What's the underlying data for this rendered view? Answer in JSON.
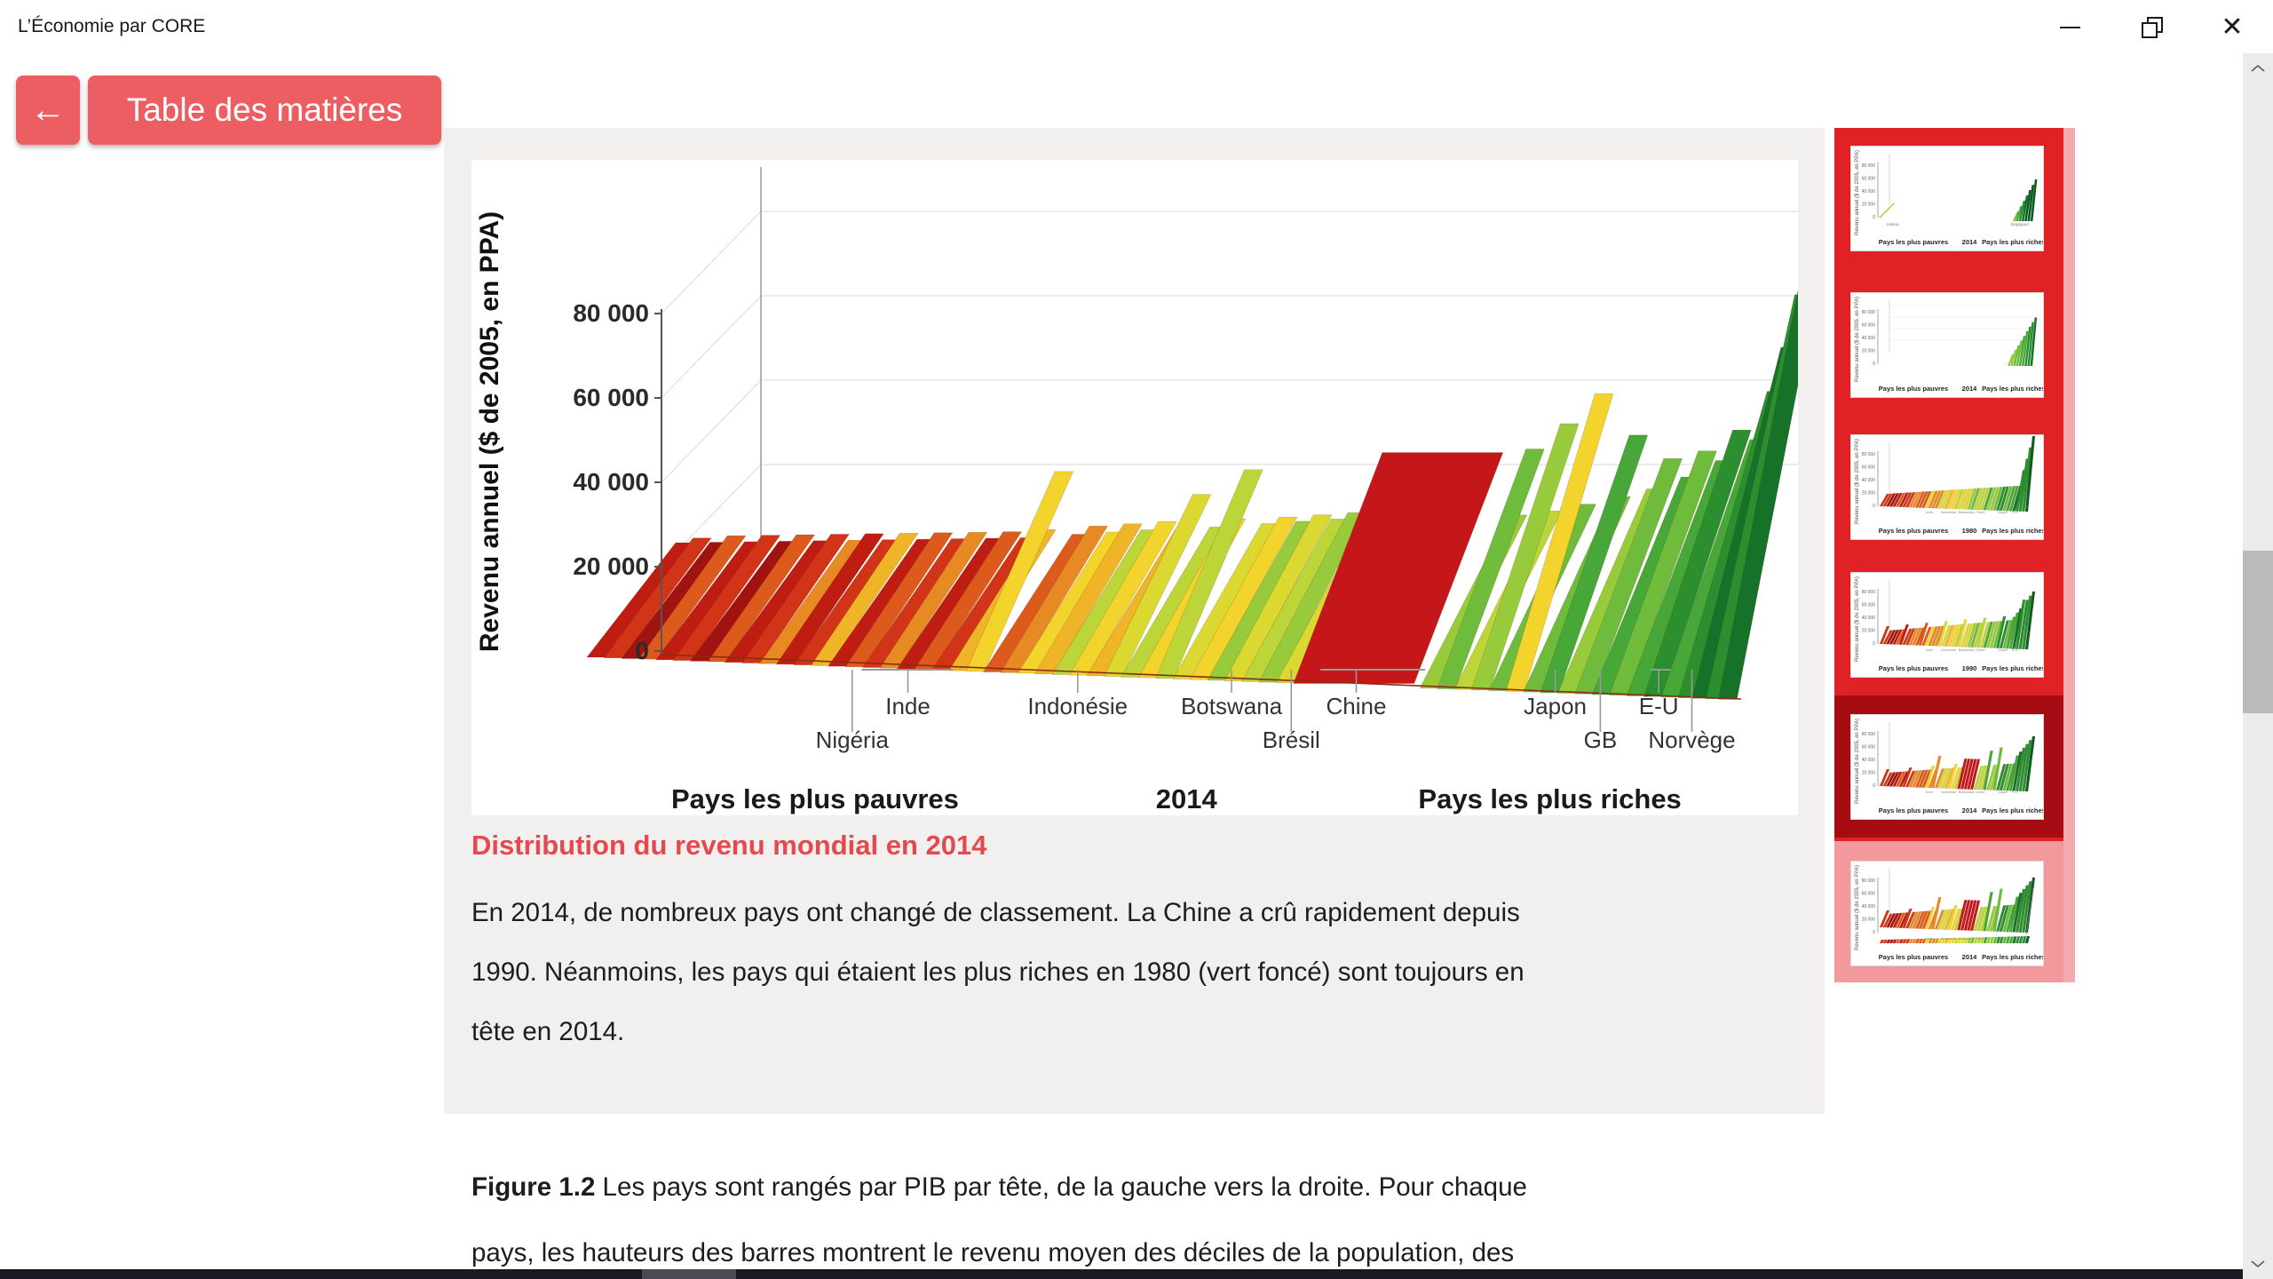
{
  "window": {
    "title": "L’Économie par CORE",
    "controls": {
      "minimize": "minimize",
      "restore": "restore",
      "close": "✕"
    }
  },
  "toolbar": {
    "back_label": "←",
    "toc_label": "Table des matières"
  },
  "colors": {
    "button_red": "#ec5e62",
    "heading_red": "#e4494f",
    "sidebar_red": "#e02125",
    "sidebar_selected_red": "#a50d12",
    "sidebar_highlight_pink": "#f2999c",
    "sidebar_strip_pink": "#f5abad",
    "panel_grey": "#f1f0ee",
    "china_red": "#c5171a"
  },
  "figure_panel": {
    "heading": "Distribution du revenu mondial en 2014",
    "body_lines": [
      "En 2014, de nombreux pays ont changé de classement. La Chine a crû rapidement depuis",
      "1990. Néanmoins, les pays qui étaient les plus riches en 1980 (vert foncé) sont toujours en",
      "tête en 2014."
    ]
  },
  "caption": {
    "figure_label": "Figure 1.2",
    "line1_rest": " Les pays sont rangés par PIB par tête, de la gauche vers la droite. Pour chaque",
    "line2": "pays, les hauteurs des barres montrent le revenu moyen des déciles de la population, des"
  },
  "chart_data": {
    "type": "bar",
    "title": "Distribution du revenu mondial en 2014",
    "ylabel": "Revenu annuel ($ de 2005, en PPA)",
    "yticks": [
      0,
      20000,
      40000,
      60000,
      80000
    ],
    "ytick_labels": [
      "0",
      "20 000",
      "40 000",
      "60 000",
      "80 000"
    ],
    "ylim": [
      0,
      100000
    ],
    "grid": true,
    "bottom_labels": [
      {
        "text": "Pays les plus pauvres",
        "fx": 0.259
      },
      {
        "text": "2014",
        "fx": 0.539
      },
      {
        "text": "Pays les plus riches",
        "fx": 0.813
      }
    ],
    "annotations": [
      {
        "label": "Nigéria",
        "row": 2,
        "fx": 0.287
      },
      {
        "label": "Inde",
        "row": 1,
        "fx": 0.329
      },
      {
        "label": "Indonésie",
        "row": 1,
        "fx": 0.457
      },
      {
        "label": "Botswana",
        "row": 1,
        "fx": 0.573
      },
      {
        "label": "Brésil",
        "row": 2,
        "fx": 0.618
      },
      {
        "label": "Chine",
        "row": 1,
        "fx": 0.667
      },
      {
        "label": "Japon",
        "row": 1,
        "fx": 0.817
      },
      {
        "label": "GB",
        "row": 2,
        "fx": 0.851
      },
      {
        "label": "É-U",
        "row": 1,
        "fx": 0.895
      },
      {
        "label": "Norvège",
        "row": 2,
        "fx": 0.92
      }
    ],
    "brackets": [
      {
        "from": 0.294,
        "to": 0.363
      },
      {
        "from": 0.64,
        "to": 0.719
      },
      {
        "from": 0.889,
        "to": 0.904
      }
    ],
    "palette": [
      "#a01310",
      "#bf1d12",
      "#d23418",
      "#dd5a1d",
      "#e88a24",
      "#f0b428",
      "#f3d42c",
      "#dbd832",
      "#bcd538",
      "#97cb3c",
      "#6fbc3d",
      "#47a738",
      "#2b8f30",
      "#167129",
      "#0e5a22",
      "#c5171a"
    ],
    "bars": [
      [
        0.0,
        34,
        1
      ],
      [
        0.015,
        40,
        2
      ],
      [
        0.03,
        36,
        0
      ],
      [
        0.045,
        44,
        3
      ],
      [
        0.06,
        38,
        1
      ],
      [
        0.075,
        46,
        2
      ],
      [
        0.09,
        40,
        0
      ],
      [
        0.105,
        48,
        3
      ],
      [
        0.12,
        42,
        1
      ],
      [
        0.135,
        50,
        2
      ],
      [
        0.15,
        44,
        4
      ],
      [
        0.165,
        52,
        1
      ],
      [
        0.18,
        46,
        2
      ],
      [
        0.195,
        54,
        5
      ],
      [
        0.21,
        48,
        1
      ],
      [
        0.225,
        56,
        3
      ],
      [
        0.24,
        50,
        2
      ],
      [
        0.255,
        58,
        4
      ],
      [
        0.27,
        52,
        1
      ],
      [
        0.285,
        60,
        3
      ],
      [
        0.3,
        54,
        2
      ],
      [
        0.315,
        64,
        5
      ],
      [
        0.33,
        130,
        6
      ],
      [
        0.345,
        60,
        3
      ],
      [
        0.36,
        70,
        4
      ],
      [
        0.375,
        64,
        6
      ],
      [
        0.39,
        74,
        5
      ],
      [
        0.405,
        68,
        8
      ],
      [
        0.42,
        78,
        6
      ],
      [
        0.435,
        70,
        5
      ],
      [
        0.45,
        110,
        7
      ],
      [
        0.465,
        74,
        8
      ],
      [
        0.48,
        84,
        6
      ],
      [
        0.495,
        140,
        8
      ],
      [
        0.51,
        80,
        7
      ],
      [
        0.525,
        88,
        6
      ],
      [
        0.54,
        84,
        9
      ],
      [
        0.555,
        92,
        7
      ],
      [
        0.57,
        88,
        8
      ],
      [
        0.585,
        96,
        9
      ],
      [
        0.6,
        90,
        7
      ],
      [
        0.615,
        165,
        15,
        0.105
      ],
      [
        0.725,
        100,
        9
      ],
      [
        0.74,
        175,
        10
      ],
      [
        0.755,
        106,
        8
      ],
      [
        0.77,
        205,
        9
      ],
      [
        0.785,
        115,
        10
      ],
      [
        0.8,
        240,
        6
      ],
      [
        0.815,
        125,
        10
      ],
      [
        0.83,
        195,
        11
      ],
      [
        0.845,
        135,
        9
      ],
      [
        0.86,
        170,
        10
      ],
      [
        0.875,
        150,
        11
      ],
      [
        0.89,
        180,
        10
      ],
      [
        0.905,
        170,
        11
      ],
      [
        0.92,
        205,
        12
      ],
      [
        0.935,
        195,
        11
      ],
      [
        0.95,
        250,
        12
      ],
      [
        0.962,
        300,
        13
      ],
      [
        0.974,
        360,
        12
      ],
      [
        0.985,
        420,
        13
      ]
    ]
  },
  "sidebar": {
    "thumbnails": [
      {
        "year": "2014",
        "variant": "v1",
        "state": "normal",
        "left_tag": "Libéria",
        "right_tag": "Singapour"
      },
      {
        "year": "2014",
        "variant": "v2",
        "state": "normal"
      },
      {
        "year": "1980",
        "variant": "v3",
        "state": "normal"
      },
      {
        "year": "1990",
        "variant": "v4",
        "state": "normal"
      },
      {
        "year": "2014",
        "variant": "v5",
        "state": "selected"
      },
      {
        "year": "2014",
        "variant": "v6",
        "state": "highlighted"
      }
    ],
    "mini_labels": {
      "left": "Pays les plus pauvres",
      "right": "Pays les plus riches"
    }
  },
  "scrollbar": {
    "up_icon": "chevron-up",
    "down_icon": "chevron-down"
  }
}
